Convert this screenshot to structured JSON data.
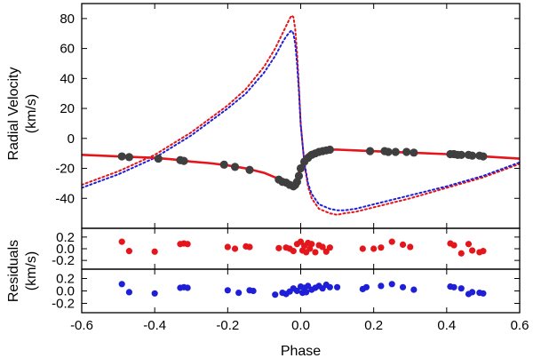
{
  "chart_data": [
    {
      "panel": "top",
      "type": "line",
      "ylabel_lines": [
        "Radial Velocity",
        "(km/s)"
      ],
      "xlim": [
        -0.6,
        0.6
      ],
      "ylim": [
        -60,
        90
      ],
      "yticks": [
        -40,
        -20,
        0,
        20,
        40,
        60,
        80
      ],
      "grid": false,
      "colors": {
        "fit": "#e4161c",
        "data": "#3f3f3f",
        "model_red": "#e4161c",
        "model_blue": "#1f1fd8"
      },
      "series": [
        {
          "style": "dotted-red",
          "x": [
            -0.6,
            -0.5,
            -0.4,
            -0.3,
            -0.2,
            -0.15,
            -0.1,
            -0.07,
            -0.05,
            -0.04,
            -0.03,
            -0.025,
            -0.02,
            -0.015,
            -0.01,
            -0.005,
            0.0,
            0.01,
            0.02,
            0.03,
            0.05,
            0.08,
            0.1,
            0.12,
            0.15,
            0.2,
            0.3,
            0.4,
            0.5,
            0.6
          ],
          "y": [
            -31,
            -22,
            -11,
            4,
            22,
            33,
            48,
            60,
            70,
            75,
            80,
            82,
            81,
            73,
            57,
            35,
            10,
            -17,
            -32,
            -40,
            -47,
            -50,
            -51,
            -50,
            -49,
            -46,
            -40,
            -33,
            -26,
            -17
          ]
        },
        {
          "style": "dotted-blue",
          "x": [
            -0.6,
            -0.5,
            -0.4,
            -0.3,
            -0.2,
            -0.15,
            -0.1,
            -0.07,
            -0.05,
            -0.04,
            -0.03,
            -0.025,
            -0.02,
            -0.015,
            -0.01,
            -0.005,
            0.0,
            0.01,
            0.02,
            0.03,
            0.05,
            0.08,
            0.1,
            0.12,
            0.15,
            0.2,
            0.3,
            0.4,
            0.5,
            0.6
          ],
          "y": [
            -33,
            -24,
            -13,
            2,
            20,
            30,
            44,
            55,
            64,
            68,
            71,
            72,
            70,
            63,
            50,
            32,
            9,
            -16,
            -30,
            -37,
            -44,
            -47,
            -48,
            -48,
            -47,
            -44,
            -38,
            -32,
            -25,
            -16
          ]
        },
        {
          "style": "solid-red",
          "x": [
            -0.6,
            -0.5,
            -0.4,
            -0.35,
            -0.3,
            -0.25,
            -0.2,
            -0.15,
            -0.1,
            -0.07,
            -0.05,
            -0.04,
            -0.03,
            -0.02,
            -0.01,
            0.0,
            0.01,
            0.02,
            0.03,
            0.05,
            0.08,
            0.1,
            0.15,
            0.2,
            0.3,
            0.4,
            0.5,
            0.6
          ],
          "y": [
            -11,
            -12,
            -13,
            -14,
            -15.5,
            -16.5,
            -18,
            -20,
            -23,
            -26,
            -28.5,
            -30,
            -31,
            -30,
            -26,
            -19,
            -13,
            -10.5,
            -9,
            -8,
            -7.5,
            -7.5,
            -8,
            -8.5,
            -9.5,
            -10.5,
            -12,
            -13.5
          ]
        },
        {
          "style": "points",
          "x": [
            -0.49,
            -0.47,
            -0.39,
            -0.33,
            -0.32,
            -0.21,
            -0.18,
            -0.14,
            -0.06,
            -0.05,
            -0.04,
            -0.03,
            -0.02,
            -0.015,
            -0.01,
            -0.005,
            0.0,
            0.01,
            0.02,
            0.03,
            0.04,
            0.05,
            0.06,
            0.07,
            0.08,
            0.19,
            0.23,
            0.24,
            0.26,
            0.29,
            0.31,
            0.41,
            0.42,
            0.43,
            0.44,
            0.46,
            0.47,
            0.49,
            0.5
          ],
          "y": [
            -12,
            -12.5,
            -13.5,
            -14.5,
            -15,
            -17.5,
            -19,
            -21,
            -27.5,
            -29,
            -29.5,
            -31,
            -32,
            -31,
            -29,
            -25,
            -20,
            -15.5,
            -13,
            -11,
            -10,
            -9,
            -8.5,
            -8,
            -7.5,
            -8.5,
            -8.5,
            -9,
            -9,
            -9,
            -9.5,
            -10.5,
            -10.5,
            -11,
            -11,
            -11,
            -11.5,
            -11.5,
            -12
          ]
        }
      ]
    },
    {
      "panel": "middle",
      "type": "scatter",
      "ylim": [
        -0.35,
        0.35
      ],
      "yticks": [
        -0.2,
        0.0,
        0.2
      ],
      "ytick_labels": [
        "-0.2",
        "0.0",
        "0.2"
      ],
      "color": "#e4161c",
      "x": [
        -0.49,
        -0.47,
        -0.4,
        -0.33,
        -0.32,
        -0.31,
        -0.2,
        -0.18,
        -0.15,
        -0.14,
        -0.06,
        -0.04,
        -0.03,
        -0.02,
        -0.01,
        0.0,
        0.005,
        0.01,
        0.015,
        0.02,
        0.025,
        0.03,
        0.04,
        0.05,
        0.06,
        0.07,
        0.08,
        0.17,
        0.2,
        0.22,
        0.25,
        0.28,
        0.3,
        0.41,
        0.42,
        0.44,
        0.46,
        0.47,
        0.49,
        0.5
      ],
      "y": [
        0.12,
        -0.04,
        -0.05,
        0.08,
        0.09,
        0.08,
        0.03,
        0.0,
        0.04,
        0.03,
        0.01,
        0.02,
        0.0,
        -0.04,
        0.08,
        0.12,
        -0.03,
        0.05,
        -0.06,
        0.1,
        0.0,
        0.08,
        -0.06,
        0.06,
        0.03,
        -0.05,
        0.02,
        0.0,
        0.0,
        0.02,
        0.12,
        0.07,
        0.03,
        0.09,
        0.06,
        -0.08,
        0.08,
        -0.03,
        -0.06,
        -0.04
      ]
    },
    {
      "panel": "bottom",
      "type": "scatter",
      "xlabel": "Phase",
      "ylabel_lines": [
        "Residuals",
        "(km/s)"
      ],
      "xlim": [
        -0.6,
        0.6
      ],
      "xticks": [
        -0.6,
        -0.4,
        -0.2,
        0.0,
        0.2,
        0.4,
        0.6
      ],
      "xtick_labels": [
        "-0.6",
        "-0.4",
        "-0.2",
        "0.0",
        "0.2",
        "0.4",
        "0.6"
      ],
      "ylim": [
        -0.35,
        0.35
      ],
      "yticks": [
        -0.2,
        0.0,
        0.2
      ],
      "ytick_labels": [
        "-0.2",
        "0.0",
        "0.2"
      ],
      "color": "#1f1fd8",
      "x": [
        -0.49,
        -0.47,
        -0.4,
        -0.33,
        -0.32,
        -0.31,
        -0.2,
        -0.17,
        -0.14,
        -0.13,
        -0.07,
        -0.05,
        -0.04,
        -0.03,
        -0.02,
        -0.01,
        0.0,
        0.005,
        0.01,
        0.015,
        0.02,
        0.03,
        0.04,
        0.05,
        0.06,
        0.07,
        0.08,
        0.1,
        0.17,
        0.18,
        0.22,
        0.25,
        0.28,
        0.31,
        0.41,
        0.42,
        0.44,
        0.46,
        0.47,
        0.49,
        0.5
      ],
      "y": [
        0.11,
        -0.02,
        -0.04,
        0.05,
        0.06,
        0.05,
        0.01,
        -0.03,
        0.01,
        0.0,
        -0.06,
        -0.03,
        -0.05,
        -0.01,
        0.04,
        0.0,
        0.07,
        -0.03,
        0.05,
        -0.02,
        0.08,
        0.02,
        0.05,
        0.08,
        0.04,
        0.1,
        0.06,
        0.06,
        0.03,
        0.06,
        0.08,
        0.11,
        0.06,
        0.02,
        0.07,
        0.06,
        0.04,
        -0.05,
        -0.02,
        -0.03,
        -0.04
      ]
    }
  ]
}
